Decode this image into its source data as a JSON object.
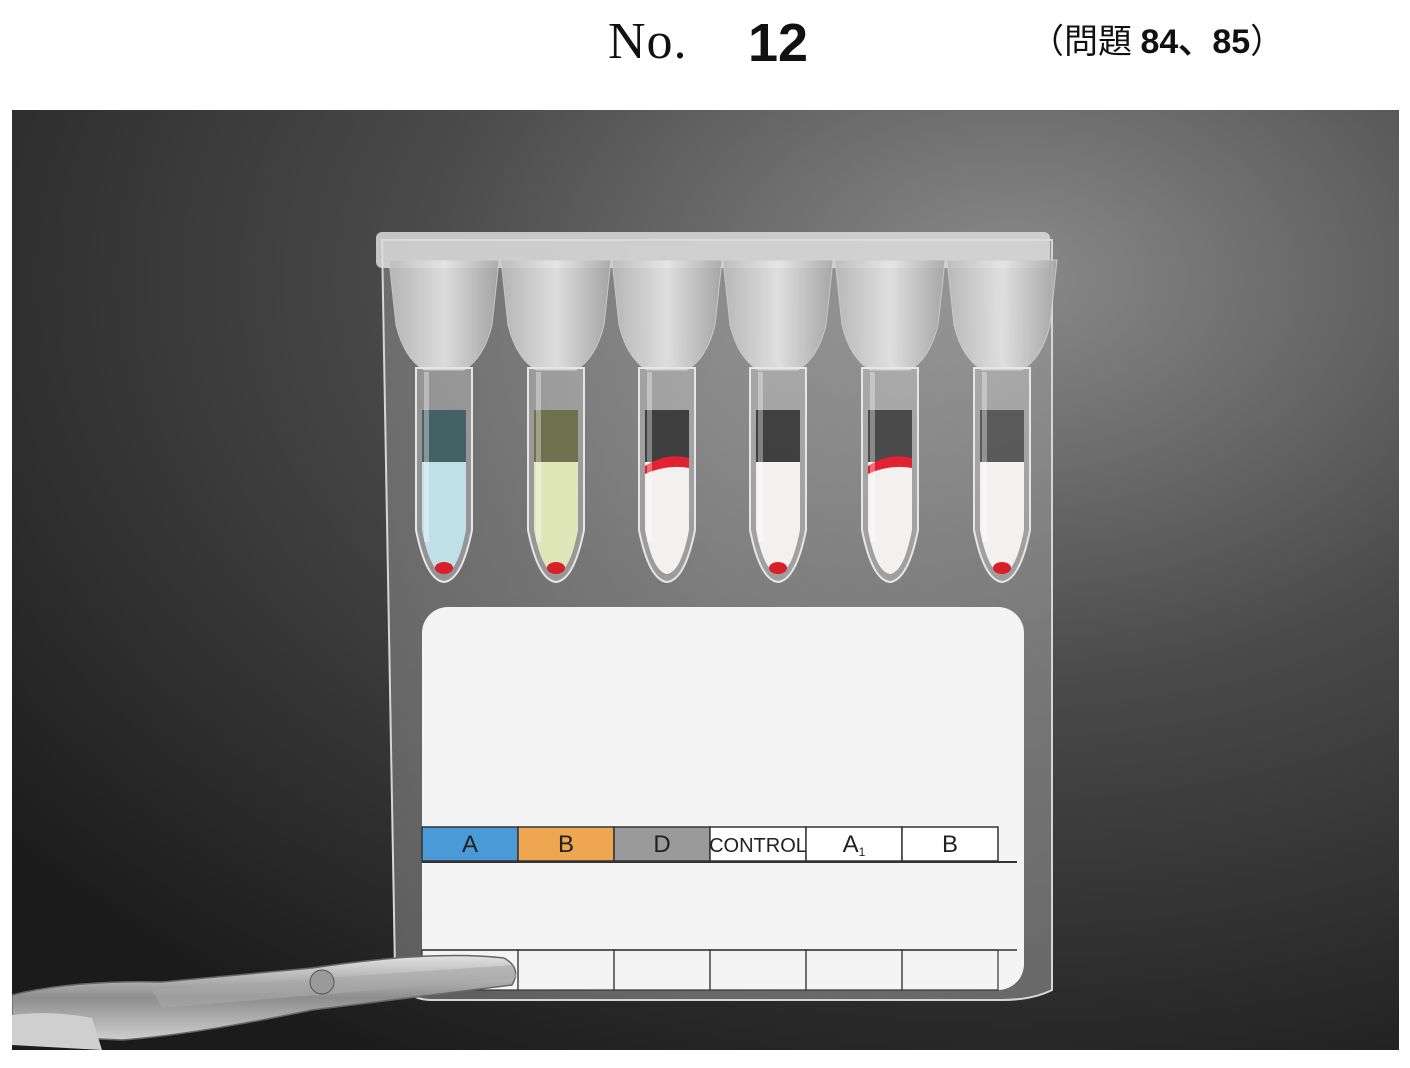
{
  "header": {
    "no_label": "No.",
    "number": "12",
    "ref_open": "（問題 ",
    "ref_numbers": "84、85",
    "ref_close": "）"
  },
  "card": {
    "columns": [
      {
        "label": "A",
        "color": "#4a9ad8"
      },
      {
        "label": "B",
        "color": "#eea651"
      },
      {
        "label": "D",
        "color": "#9a9a9a"
      },
      {
        "label": "CONTROL",
        "color": "#ffffff"
      },
      {
        "label": "A",
        "subscript": "1",
        "color": "#ffffff"
      },
      {
        "label": "B",
        "color": "#ffffff"
      }
    ]
  },
  "tubes": [
    {
      "liquid_color": "#bfe0e6",
      "dark_color": "#3f5f62",
      "result": "button"
    },
    {
      "liquid_color": "#dfe6b8",
      "dark_color": "#6c7048",
      "result": "button"
    },
    {
      "liquid_color": "#f3f0f0",
      "dark_color": "#3a3a3a",
      "result": "agglutinated-top"
    },
    {
      "liquid_color": "#f3f0f0",
      "dark_color": "#3a3a3a",
      "result": "button"
    },
    {
      "liquid_color": "#f3f0f0",
      "dark_color": "#444444",
      "result": "agglutinated-top"
    },
    {
      "liquid_color": "#f3f0f0",
      "dark_color": "#555555",
      "result": "button"
    }
  ]
}
